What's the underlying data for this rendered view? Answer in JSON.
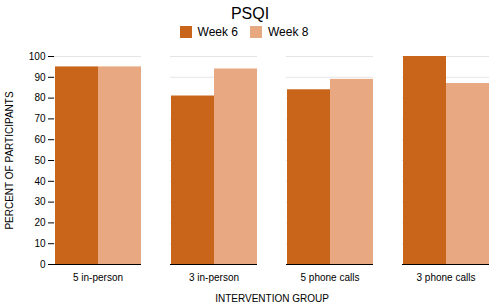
{
  "chart_data": {
    "type": "bar",
    "title": "PSQI",
    "xlabel": "INTERVENTION GROUP",
    "ylabel": "PERCENT OF PARTICIPANTS",
    "categories": [
      "5 in-person",
      "3 in-person",
      "5 phone calls",
      "3 phone calls"
    ],
    "series": [
      {
        "name": "Week 6",
        "color": "#C8651B",
        "values": [
          95,
          81,
          84,
          100
        ]
      },
      {
        "name": "Week 8",
        "color": "#E8A882",
        "values": [
          95,
          94,
          89,
          87
        ]
      }
    ],
    "ylim": [
      0,
      100
    ],
    "yticks": [
      0,
      10,
      20,
      30,
      40,
      50,
      60,
      70,
      80,
      90,
      100
    ],
    "grid": true,
    "legend": "top"
  }
}
